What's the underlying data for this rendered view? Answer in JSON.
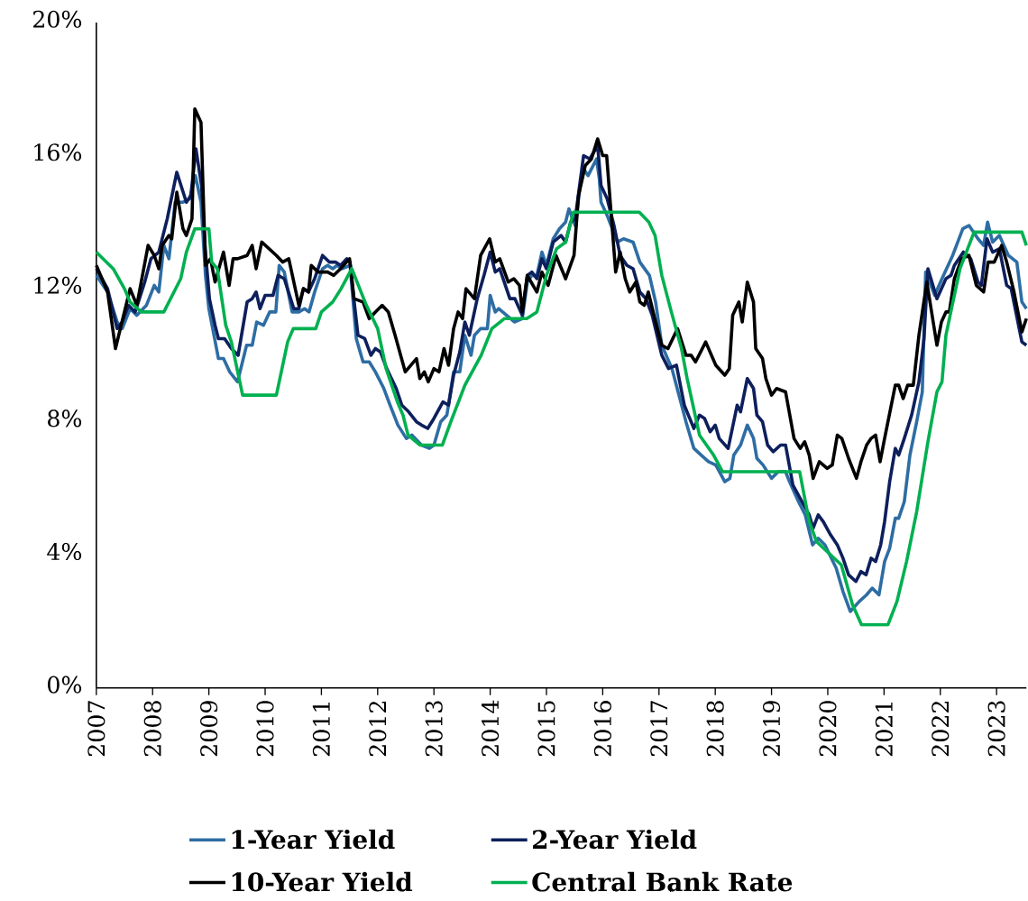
{
  "chart_data": {
    "type": "line",
    "xlim": [
      2007,
      2023.53
    ],
    "ylim": [
      0,
      20
    ],
    "xticks": [
      2007,
      2008,
      2009,
      2010,
      2011,
      2012,
      2013,
      2014,
      2015,
      2016,
      2017,
      2018,
      2019,
      2020,
      2021,
      2022,
      2023
    ],
    "yticks": [
      {
        "value": 0,
        "label": "0%"
      },
      {
        "value": 4,
        "label": "4%"
      },
      {
        "value": 8,
        "label": "8%"
      },
      {
        "value": 12,
        "label": "12%"
      },
      {
        "value": 16,
        "label": "16%"
      },
      {
        "value": 20,
        "label": "20%"
      }
    ],
    "legend": "bottom",
    "series": [
      {
        "name": "1-Year Yield",
        "color": "#2e6da4",
        "x": [
          2007.0,
          2007.2,
          2007.37,
          2007.46,
          2007.6,
          2007.72,
          2007.89,
          2008.03,
          2008.11,
          2008.2,
          2008.29,
          2008.4,
          2008.54,
          2008.66,
          2008.76,
          2008.86,
          2008.94,
          2009.0,
          2009.08,
          2009.17,
          2009.26,
          2009.37,
          2009.51,
          2009.67,
          2009.77,
          2009.85,
          2009.97,
          2010.08,
          2010.19,
          2010.25,
          2010.34,
          2010.48,
          2010.6,
          2010.7,
          2010.78,
          2010.88,
          2011.02,
          2011.11,
          2011.2,
          2011.28,
          2011.37,
          2011.51,
          2011.62,
          2011.74,
          2011.85,
          2011.96,
          2012.11,
          2012.22,
          2012.36,
          2012.51,
          2012.61,
          2012.78,
          2012.92,
          2013.0,
          2013.12,
          2013.23,
          2013.35,
          2013.46,
          2013.55,
          2013.66,
          2013.72,
          2013.83,
          2013.95,
          2014.0,
          2014.09,
          2014.15,
          2014.29,
          2014.43,
          2014.57,
          2014.66,
          2014.74,
          2014.83,
          2014.92,
          2015.0,
          2015.12,
          2015.23,
          2015.34,
          2015.4,
          2015.51,
          2015.6,
          2015.66,
          2015.74,
          2015.89,
          2015.94,
          2015.97,
          2016.08,
          2016.26,
          2016.37,
          2016.54,
          2016.66,
          2016.83,
          2016.94,
          2017.05,
          2017.23,
          2017.34,
          2017.48,
          2017.62,
          2017.75,
          2017.88,
          2018.01,
          2018.17,
          2018.26,
          2018.33,
          2018.45,
          2018.57,
          2018.68,
          2018.74,
          2018.85,
          2019.0,
          2019.12,
          2019.25,
          2019.32,
          2019.48,
          2019.6,
          2019.73,
          2019.83,
          2019.95,
          2020.15,
          2020.27,
          2020.4,
          2020.56,
          2020.69,
          2020.79,
          2020.91,
          2021.01,
          2021.1,
          2021.2,
          2021.26,
          2021.36,
          2021.46,
          2021.58,
          2021.68,
          2021.74,
          2021.9,
          2022.03,
          2022.22,
          2022.4,
          2022.51,
          2022.67,
          2022.77,
          2022.84,
          2022.93,
          2023.05,
          2023.21,
          2023.36,
          2023.45,
          2023.53
        ],
        "values": [
          12.4,
          11.9,
          11.0,
          10.8,
          11.4,
          11.2,
          11.5,
          12.1,
          11.9,
          13.3,
          12.9,
          14.6,
          14.6,
          14.7,
          15.4,
          14.6,
          12.4,
          11.4,
          10.7,
          9.9,
          9.9,
          9.5,
          9.2,
          10.3,
          10.3,
          11.0,
          10.9,
          11.3,
          11.3,
          12.7,
          12.5,
          11.3,
          11.3,
          11.4,
          11.3,
          11.9,
          12.6,
          12.7,
          12.6,
          12.7,
          12.6,
          12.7,
          10.5,
          9.8,
          9.8,
          9.5,
          9.0,
          8.5,
          7.9,
          7.5,
          7.6,
          7.3,
          7.2,
          7.3,
          8.0,
          8.2,
          9.5,
          9.5,
          10.6,
          10.0,
          10.6,
          10.8,
          10.8,
          11.8,
          11.3,
          11.4,
          11.2,
          11.0,
          11.1,
          12.2,
          12.4,
          12.4,
          13.1,
          12.7,
          13.5,
          13.8,
          14.0,
          14.4,
          13.9,
          15.1,
          15.6,
          15.4,
          15.9,
          15.3,
          14.6,
          14.2,
          13.4,
          13.5,
          13.4,
          12.8,
          12.4,
          11.6,
          10.3,
          9.6,
          8.9,
          8.0,
          7.2,
          7.0,
          6.8,
          6.7,
          6.2,
          6.3,
          7.0,
          7.3,
          7.9,
          7.5,
          6.9,
          6.7,
          6.3,
          6.5,
          6.5,
          6.2,
          5.6,
          5.2,
          4.3,
          4.5,
          4.3,
          3.6,
          2.9,
          2.3,
          2.6,
          2.8,
          3.0,
          2.8,
          3.8,
          4.2,
          5.1,
          5.1,
          5.6,
          7.0,
          8.0,
          8.9,
          12.5,
          11.8,
          12.3,
          13.0,
          13.8,
          13.9,
          13.5,
          13.3,
          14.0,
          13.4,
          13.6,
          13.0,
          12.8,
          11.6,
          11.4
        ]
      },
      {
        "name": "2-Year Yield",
        "color": "#0d1f5c",
        "x": [
          2007.0,
          2007.2,
          2007.37,
          2007.46,
          2007.57,
          2007.69,
          2007.86,
          2007.97,
          2008.11,
          2008.26,
          2008.43,
          2008.6,
          2008.68,
          2008.77,
          2008.87,
          2008.94,
          2009.01,
          2009.11,
          2009.17,
          2009.28,
          2009.4,
          2009.52,
          2009.68,
          2009.77,
          2009.84,
          2009.91,
          2010.0,
          2010.14,
          2010.23,
          2010.34,
          2010.51,
          2010.6,
          2010.68,
          2010.77,
          2010.88,
          2011.02,
          2011.14,
          2011.25,
          2011.34,
          2011.45,
          2011.51,
          2011.57,
          2011.65,
          2011.77,
          2011.88,
          2011.96,
          2012.05,
          2012.16,
          2012.33,
          2012.43,
          2012.55,
          2012.69,
          2012.78,
          2012.89,
          2013.0,
          2013.16,
          2013.26,
          2013.35,
          2013.46,
          2013.55,
          2013.63,
          2013.77,
          2013.89,
          2014.0,
          2014.09,
          2014.17,
          2014.29,
          2014.35,
          2014.44,
          2014.57,
          2014.66,
          2014.74,
          2014.83,
          2014.92,
          2015.0,
          2015.12,
          2015.26,
          2015.34,
          2015.43,
          2015.51,
          2015.66,
          2015.77,
          2015.91,
          2015.97,
          2016.08,
          2016.2,
          2016.31,
          2016.43,
          2016.54,
          2016.66,
          2016.77,
          2016.88,
          2017.05,
          2017.17,
          2017.31,
          2017.45,
          2017.62,
          2017.72,
          2017.81,
          2017.91,
          2018.0,
          2018.07,
          2018.23,
          2018.39,
          2018.45,
          2018.57,
          2018.68,
          2018.74,
          2018.84,
          2018.93,
          2019.03,
          2019.16,
          2019.25,
          2019.38,
          2019.51,
          2019.67,
          2019.74,
          2019.83,
          2019.92,
          2020.05,
          2020.17,
          2020.27,
          2020.37,
          2020.5,
          2020.59,
          2020.68,
          2020.77,
          2020.85,
          2020.94,
          2021.01,
          2021.1,
          2021.2,
          2021.26,
          2021.36,
          2021.49,
          2021.62,
          2021.71,
          2021.78,
          2021.94,
          2022.1,
          2022.19,
          2022.25,
          2022.41,
          2022.54,
          2022.67,
          2022.73,
          2022.83,
          2022.93,
          2023.05,
          2023.18,
          2023.26,
          2023.45,
          2023.53
        ],
        "values": [
          12.6,
          12.0,
          10.8,
          11.0,
          11.5,
          11.3,
          12.2,
          12.9,
          13.1,
          14.1,
          15.5,
          14.6,
          14.8,
          16.2,
          15.1,
          13.1,
          11.7,
          10.9,
          10.5,
          10.5,
          10.2,
          10.0,
          11.6,
          11.7,
          11.9,
          11.4,
          11.8,
          11.8,
          12.4,
          12.3,
          11.4,
          11.4,
          12.0,
          11.9,
          12.3,
          13.0,
          12.8,
          12.8,
          12.7,
          12.9,
          12.8,
          11.8,
          10.6,
          10.5,
          10.0,
          10.2,
          10.1,
          9.6,
          9.0,
          8.5,
          8.3,
          8.0,
          7.9,
          7.8,
          8.1,
          8.6,
          8.5,
          9.4,
          10.1,
          11.0,
          10.6,
          11.7,
          12.4,
          13.1,
          12.5,
          12.6,
          12.0,
          11.7,
          11.7,
          11.2,
          12.4,
          12.5,
          12.3,
          12.9,
          12.6,
          13.4,
          13.6,
          13.4,
          14.0,
          14.1,
          16.0,
          15.9,
          16.3,
          15.1,
          14.7,
          13.9,
          13.0,
          12.7,
          12.6,
          11.9,
          11.7,
          11.2,
          10.0,
          9.6,
          9.7,
          8.5,
          7.8,
          8.2,
          8.1,
          7.7,
          7.9,
          7.5,
          7.2,
          8.5,
          8.3,
          9.3,
          9.0,
          8.2,
          8.0,
          7.3,
          7.1,
          7.3,
          7.3,
          6.1,
          5.7,
          5.2,
          4.8,
          5.2,
          5.0,
          4.6,
          4.3,
          3.9,
          3.4,
          3.2,
          3.5,
          3.4,
          3.9,
          3.8,
          4.3,
          5.0,
          6.2,
          7.2,
          7.0,
          7.5,
          8.2,
          9.2,
          10.5,
          12.6,
          11.7,
          12.3,
          12.4,
          12.7,
          13.1,
          12.9,
          12.2,
          12.1,
          13.5,
          13.1,
          13.2,
          12.1,
          12.0,
          10.4,
          10.3
        ]
      },
      {
        "name": "10-Year Yield",
        "color": "#000000",
        "x": [
          2007.0,
          2007.2,
          2007.34,
          2007.6,
          2007.72,
          2007.92,
          2008.03,
          2008.11,
          2008.17,
          2008.29,
          2008.34,
          2008.43,
          2008.54,
          2008.6,
          2008.7,
          2008.75,
          2008.86,
          2008.94,
          2009.03,
          2009.11,
          2009.26,
          2009.36,
          2009.43,
          2009.51,
          2009.68,
          2009.77,
          2009.84,
          2009.94,
          2010.2,
          2010.31,
          2010.42,
          2010.6,
          2010.68,
          2010.77,
          2010.82,
          2010.94,
          2011.11,
          2011.22,
          2011.34,
          2011.5,
          2011.58,
          2011.74,
          2011.85,
          2011.96,
          2012.08,
          2012.19,
          2012.31,
          2012.49,
          2012.69,
          2012.75,
          2012.83,
          2012.9,
          2013.0,
          2013.09,
          2013.18,
          2013.26,
          2013.35,
          2013.43,
          2013.51,
          2013.57,
          2013.72,
          2013.83,
          2013.99,
          2014.09,
          2014.17,
          2014.32,
          2014.42,
          2014.52,
          2014.57,
          2014.66,
          2014.83,
          2014.92,
          2015.03,
          2015.17,
          2015.34,
          2015.49,
          2015.57,
          2015.69,
          2015.8,
          2015.91,
          2016.0,
          2016.07,
          2016.23,
          2016.31,
          2016.4,
          2016.48,
          2016.59,
          2016.66,
          2016.74,
          2016.81,
          2016.94,
          2017.05,
          2017.16,
          2017.33,
          2017.48,
          2017.57,
          2017.65,
          2017.83,
          2018.01,
          2018.17,
          2018.25,
          2018.31,
          2018.42,
          2018.48,
          2018.57,
          2018.68,
          2018.72,
          2018.84,
          2018.9,
          2019.0,
          2019.09,
          2019.25,
          2019.4,
          2019.51,
          2019.59,
          2019.67,
          2019.74,
          2019.85,
          2019.99,
          2020.08,
          2020.17,
          2020.25,
          2020.37,
          2020.51,
          2020.59,
          2020.69,
          2020.77,
          2020.85,
          2020.93,
          2021.01,
          2021.2,
          2021.26,
          2021.34,
          2021.42,
          2021.52,
          2021.62,
          2021.76,
          2021.94,
          2022.02,
          2022.1,
          2022.16,
          2022.25,
          2022.38,
          2022.51,
          2022.64,
          2022.77,
          2022.85,
          2022.96,
          2023.09,
          2023.18,
          2023.31,
          2023.45,
          2023.53
        ],
        "values": [
          12.7,
          11.9,
          10.2,
          12.0,
          11.5,
          13.3,
          13.0,
          12.6,
          13.3,
          13.6,
          13.5,
          14.9,
          13.8,
          13.6,
          14.1,
          17.4,
          17.0,
          12.7,
          12.9,
          12.2,
          13.1,
          12.1,
          12.9,
          12.9,
          13.0,
          13.3,
          12.6,
          13.4,
          13.0,
          12.8,
          12.9,
          11.5,
          12.0,
          11.9,
          12.7,
          12.5,
          12.5,
          12.4,
          12.6,
          12.9,
          11.7,
          11.6,
          11.1,
          11.3,
          11.5,
          11.3,
          10.6,
          9.5,
          9.9,
          9.3,
          9.5,
          9.2,
          9.6,
          9.5,
          10.2,
          9.7,
          10.8,
          11.3,
          11.1,
          12.0,
          11.7,
          13.0,
          13.5,
          12.8,
          12.9,
          12.2,
          12.3,
          12.1,
          11.3,
          12.4,
          11.9,
          12.5,
          12.1,
          13.0,
          12.3,
          13.0,
          14.8,
          15.7,
          15.9,
          16.5,
          16.0,
          16.0,
          12.5,
          13.1,
          12.3,
          11.9,
          12.2,
          11.6,
          11.5,
          11.9,
          11.0,
          10.3,
          10.2,
          10.8,
          10.0,
          10.0,
          9.8,
          10.4,
          9.7,
          9.4,
          9.6,
          11.2,
          11.6,
          11.0,
          12.2,
          11.6,
          10.2,
          9.9,
          9.3,
          8.8,
          9.0,
          8.9,
          7.5,
          7.2,
          7.4,
          7.0,
          6.3,
          6.8,
          6.6,
          6.7,
          7.6,
          7.5,
          6.9,
          6.3,
          6.8,
          7.3,
          7.5,
          7.6,
          6.8,
          7.5,
          9.1,
          9.1,
          8.7,
          9.1,
          9.1,
          10.6,
          12.2,
          10.3,
          11.0,
          11.3,
          11.3,
          12.3,
          12.9,
          13.0,
          12.1,
          11.9,
          12.8,
          12.8,
          13.3,
          12.8,
          11.9,
          10.7,
          11.1
        ]
      },
      {
        "name": "Central Bank Rate",
        "color": "#00b050",
        "x": [
          2007.0,
          2007.3,
          2007.5,
          2007.6,
          2007.8,
          2008.2,
          2008.35,
          2008.5,
          2008.6,
          2008.75,
          2009.0,
          2009.05,
          2009.15,
          2009.3,
          2009.4,
          2009.6,
          2010.2,
          2010.3,
          2010.4,
          2010.5,
          2010.9,
          2011.0,
          2011.2,
          2011.35,
          2011.54,
          2011.8,
          2012.0,
          2012.15,
          2012.35,
          2012.45,
          2012.54,
          2012.75,
          2013.15,
          2013.3,
          2013.55,
          2013.84,
          2014.03,
          2014.25,
          2014.65,
          2014.83,
          2015.0,
          2015.18,
          2015.34,
          2015.48,
          2016.65,
          2016.82,
          2016.93,
          2017.05,
          2017.22,
          2017.4,
          2017.5,
          2017.72,
          2017.97,
          2018.13,
          2019.5,
          2019.67,
          2019.8,
          2020.05,
          2020.24,
          2020.44,
          2020.6,
          2021.07,
          2021.23,
          2021.4,
          2021.58,
          2021.78,
          2021.94,
          2022.03,
          2022.1,
          2022.35,
          2022.6,
          2023.45,
          2023.53
        ],
        "values": [
          13.1,
          12.6,
          12.0,
          11.6,
          11.3,
          11.3,
          11.8,
          12.3,
          13.1,
          13.8,
          13.8,
          12.8,
          12.6,
          10.9,
          10.4,
          8.8,
          8.8,
          9.6,
          10.4,
          10.8,
          10.8,
          11.3,
          11.6,
          12.0,
          12.6,
          11.5,
          10.8,
          9.6,
          8.6,
          8.2,
          7.6,
          7.3,
          7.3,
          8.0,
          9.1,
          10.0,
          10.8,
          11.1,
          11.1,
          11.3,
          12.4,
          13.2,
          13.4,
          14.3,
          14.3,
          14.0,
          13.6,
          12.4,
          11.3,
          10.2,
          9.3,
          7.6,
          7.0,
          6.5,
          6.5,
          5.0,
          4.4,
          4.0,
          3.7,
          2.5,
          1.9,
          1.9,
          2.6,
          3.8,
          5.3,
          7.4,
          8.9,
          9.2,
          10.6,
          12.6,
          13.7,
          13.7,
          13.3
        ]
      }
    ]
  }
}
